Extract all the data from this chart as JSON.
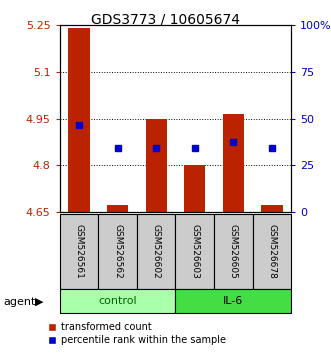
{
  "title": "GDS3773 / 10605674",
  "samples": [
    "GSM526561",
    "GSM526562",
    "GSM526602",
    "GSM526603",
    "GSM526605",
    "GSM526678"
  ],
  "bar_bottoms": [
    4.65,
    4.65,
    4.65,
    4.65,
    4.65,
    4.65
  ],
  "bar_tops": [
    5.24,
    4.675,
    4.95,
    4.8,
    4.965,
    4.675
  ],
  "percentile_values": [
    4.93,
    4.855,
    4.855,
    4.855,
    4.875,
    4.855
  ],
  "ylim": [
    4.65,
    5.25
  ],
  "yticks": [
    4.65,
    4.8,
    4.95,
    5.1,
    5.25
  ],
  "ytick_labels": [
    "4.65",
    "4.8",
    "4.95",
    "5.1",
    "5.25"
  ],
  "right_yticks": [
    0,
    25,
    50,
    75,
    100
  ],
  "right_ytick_labels": [
    "0",
    "25",
    "50",
    "75",
    "100%"
  ],
  "bar_color": "#bb2200",
  "percentile_color": "#0000cc",
  "control_color": "#aaffaa",
  "il6_color": "#44dd44",
  "bar_width": 0.55,
  "legend_labels": [
    "transformed count",
    "percentile rank within the sample"
  ]
}
